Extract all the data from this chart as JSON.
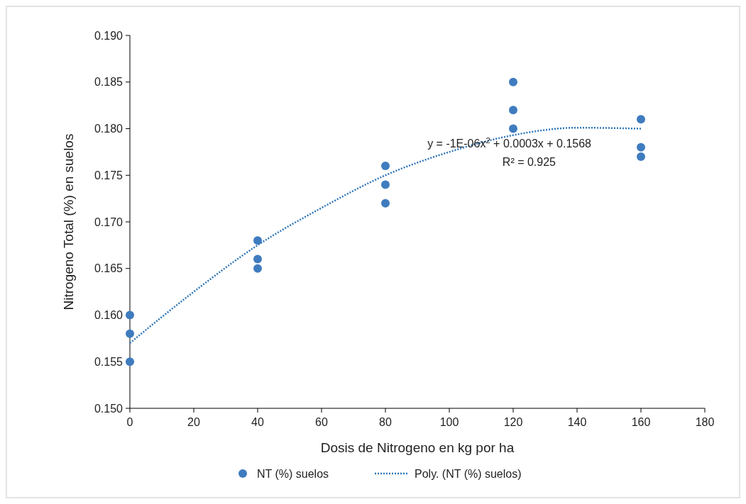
{
  "chart_data": {
    "type": "scatter",
    "xlabel": "Dosis de Nitrogeno en kg por ha",
    "ylabel": "Nitrogeno Total (%) en suelos",
    "xlim": [
      0,
      180
    ],
    "xticks": [
      0,
      20,
      40,
      60,
      80,
      100,
      120,
      140,
      160,
      180
    ],
    "ylim": [
      0.15,
      0.19
    ],
    "yticks": [
      {
        "value": 0.15,
        "label": "0.150"
      },
      {
        "value": 0.155,
        "label": "0.155"
      },
      {
        "value": 0.16,
        "label": "0.160"
      },
      {
        "value": 0.165,
        "label": "0.165"
      },
      {
        "value": 0.17,
        "label": "0.170"
      },
      {
        "value": 0.175,
        "label": "0.175"
      },
      {
        "value": 0.18,
        "label": "0.180"
      },
      {
        "value": 0.185,
        "label": "0.185"
      },
      {
        "value": 0.19,
        "label": "0.190"
      }
    ],
    "grid": false,
    "legend": "bottom",
    "series": [
      {
        "name": "NT (%) suelos",
        "marker": "circle",
        "color": "#3f7cbf",
        "x": [
          0,
          0,
          0,
          40,
          40,
          40,
          80,
          80,
          80,
          120,
          120,
          120,
          160,
          160,
          160
        ],
        "values": [
          0.16,
          0.158,
          0.155,
          0.168,
          0.166,
          0.165,
          0.176,
          0.174,
          0.172,
          0.185,
          0.182,
          0.18,
          0.181,
          0.178,
          0.177
        ]
      },
      {
        "name": "Poly. (NT (%) suelos)",
        "type": "line",
        "marker": "none",
        "line_style": "dotted",
        "color": "#2e75b6",
        "x": [
          0,
          20,
          40,
          60,
          80,
          100,
          120,
          140,
          160
        ],
        "values": [
          0.157,
          0.1625,
          0.1675,
          0.1715,
          0.175,
          0.1775,
          0.1793,
          0.1801,
          0.18
        ]
      }
    ],
    "annotations": [
      "y = -1E-06x$^{2}$ + 0.0003x + 0.1568",
      "R² = 0.925"
    ]
  }
}
